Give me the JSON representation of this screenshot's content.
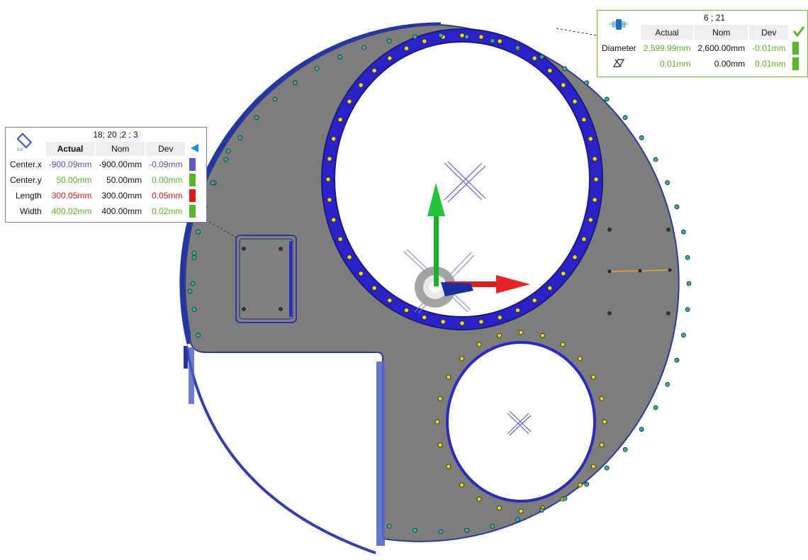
{
  "colors": {
    "plate": "#7d7d7d",
    "plate_edge": "#24339b",
    "flange": "#2a22c8",
    "bolt": "#e9da14",
    "pin": "#2fb0a2",
    "axis_x": "#e32020",
    "axis_y": "#18b82e",
    "axis_z": "#1a2fa8",
    "green_text": "#5ab528",
    "red_text": "#e01818",
    "blue_text": "#5553b8",
    "swatch_green": "#5ab528",
    "swatch_red": "#e01818",
    "swatch_blue": "#5f58c8"
  },
  "rect_callout": {
    "icon": "rectangle-feature-icon",
    "title": "18; 20 ;2 ; 3",
    "headers": {
      "actual": "Actual",
      "nom": "Nom",
      "dev": "Dev"
    },
    "indicator": "collapse-triangle-icon",
    "rows": [
      {
        "label": "Center.x",
        "actual": "-900.09mm",
        "nom": "-900.00mm",
        "dev": "-0.09mm",
        "status": "blue"
      },
      {
        "label": "Center.y",
        "actual": "50.00mm",
        "nom": "50.00mm",
        "dev": "0.00mm",
        "status": "green"
      },
      {
        "label": "Length",
        "actual": "300.05mm",
        "nom": "300.00mm",
        "dev": "0.05mm",
        "status": "red"
      },
      {
        "label": "Width",
        "actual": "400.02mm",
        "nom": "400.00mm",
        "dev": "0.02mm",
        "status": "green"
      }
    ]
  },
  "circle_callout": {
    "icon": "circle-feature-icon",
    "title": "6 ; 21",
    "headers": {
      "actual": "Actual",
      "nom": "Nom",
      "dev": "Dev"
    },
    "indicator": "check-icon",
    "rows": [
      {
        "label": "Diameter",
        "actual": "2,599.99mm",
        "nom": "2,600.00mm",
        "dev": "-0.01mm",
        "status": "green"
      },
      {
        "label": "",
        "label_icon": "flatness-icon",
        "actual": "0.01mm",
        "nom": "0.00mm",
        "dev": "0.01mm",
        "status": "green"
      }
    ]
  }
}
